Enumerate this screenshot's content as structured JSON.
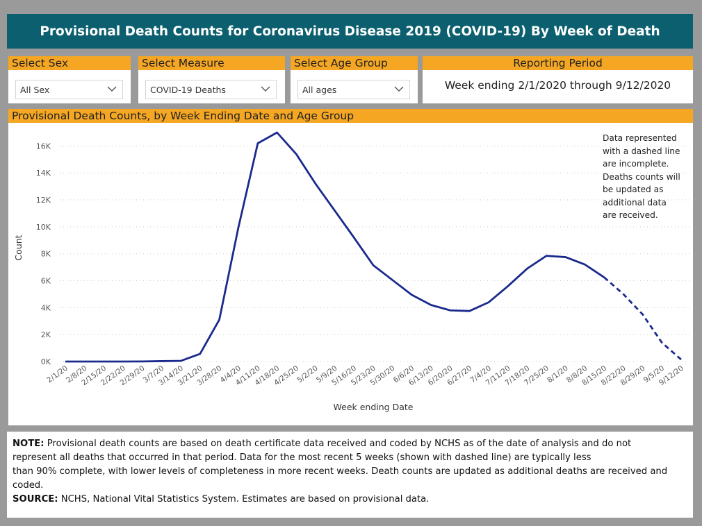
{
  "title": "Provisional Death Counts for Coronavirus Disease 2019 (COVID-19) By Week of Death",
  "filters": {
    "sex": {
      "label": "Select Sex",
      "value": "All Sex"
    },
    "measure": {
      "label": "Select Measure",
      "value": "COVID-19 Deaths"
    },
    "age": {
      "label": "Select Age Group",
      "value": "All ages"
    },
    "period": {
      "label": "Reporting Period",
      "value": "Week ending 2/1/2020 through 9/12/2020"
    }
  },
  "chart_panel_title": "Provisional Death Counts, by Week Ending Date and Age Group",
  "annotation_lines": [
    "Data represented",
    "with a dashed line",
    "are incomplete.",
    "Deaths counts will",
    "be updated as",
    "additional data",
    "are received."
  ],
  "note": {
    "note_label": "NOTE:",
    "note_line1": " Provisional death counts are based on death certificate data received and coded by NCHS as of the date of analysis and do not",
    "note_line2": "represent all deaths that occurred in that period. Data for the most recent 5 weeks (shown with dashed line) are typically less",
    "note_line3": "than 90% complete, with lower levels of completeness in more recent weeks.  Death counts are updated as additional deaths are received and",
    "note_line4": "coded.",
    "source_label": "SOURCE:",
    "source_text": " NCHS, National Vital Statistics System. Estimates are based on provisional data."
  },
  "chart_data": {
    "type": "line",
    "title": "Provisional Death Counts, by Week Ending Date and Age Group",
    "xlabel": "Week ending Date",
    "ylabel": "Count",
    "ylim": [
      0,
      17500
    ],
    "yticks": [
      0,
      2000,
      4000,
      6000,
      8000,
      10000,
      12000,
      14000,
      16000
    ],
    "ytick_labels": [
      "0K",
      "2K",
      "4K",
      "6K",
      "8K",
      "10K",
      "12K",
      "14K",
      "16K"
    ],
    "grid": true,
    "color": "#1a2a8c",
    "categories": [
      "2/1/20",
      "2/8/20",
      "2/15/20",
      "2/22/20",
      "2/29/20",
      "3/7/20",
      "3/14/20",
      "3/21/20",
      "3/28/20",
      "4/4/20",
      "4/11/20",
      "4/18/20",
      "4/25/20",
      "5/2/20",
      "5/9/20",
      "5/16/20",
      "5/23/20",
      "5/30/20",
      "6/6/20",
      "6/13/20",
      "6/20/20",
      "6/27/20",
      "7/4/20",
      "7/11/20",
      "7/18/20",
      "7/25/20",
      "8/1/20",
      "8/8/20",
      "8/15/20",
      "8/22/20",
      "8/29/20",
      "9/5/20",
      "9/12/20"
    ],
    "values": [
      0,
      0,
      0,
      0,
      5,
      30,
      50,
      570,
      3100,
      10000,
      16200,
      17000,
      15400,
      13200,
      11200,
      9200,
      7150,
      6050,
      4950,
      4200,
      3800,
      3750,
      4400,
      5600,
      6900,
      7850,
      7750,
      7200,
      6250,
      5000,
      3500,
      1400,
      150
    ],
    "dashed_from_index": 28
  }
}
